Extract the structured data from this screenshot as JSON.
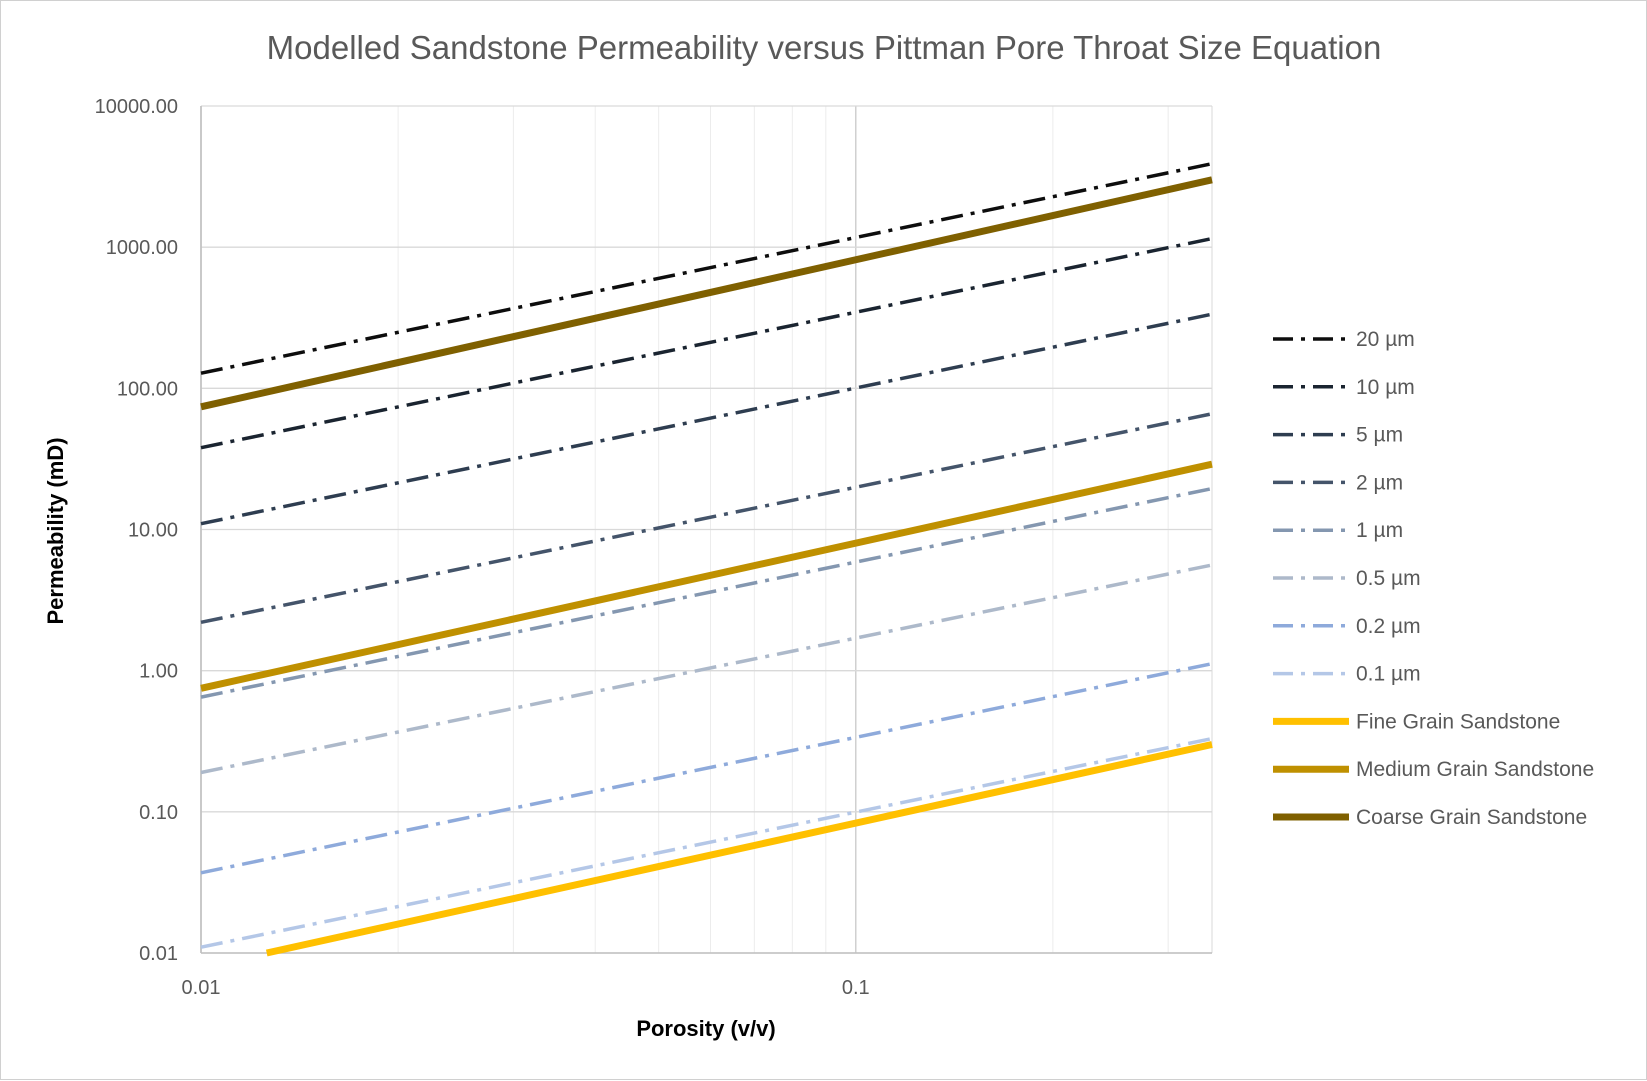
{
  "chart_data": {
    "type": "line",
    "title": "Modelled Sandstone Permeability versus Pittman Pore Throat Size Equation",
    "xlabel": "Porosity (v/v)",
    "ylabel": "Permeability (mD)",
    "xscale": "log",
    "yscale": "log",
    "xlim": [
      0.01,
      0.35
    ],
    "ylim": [
      0.01,
      10000
    ],
    "xticks": [
      {
        "value": 0.01,
        "label": "0.01"
      },
      {
        "value": 0.1,
        "label": "0.1"
      }
    ],
    "yticks": [
      {
        "value": 10000,
        "label": "10000.00"
      },
      {
        "value": 1000,
        "label": "1000.00"
      },
      {
        "value": 100,
        "label": "100.00"
      },
      {
        "value": 10,
        "label": "10.00"
      },
      {
        "value": 1,
        "label": "1.00"
      },
      {
        "value": 0.1,
        "label": "0.10"
      },
      {
        "value": 0.01,
        "label": "0.01"
      }
    ],
    "grid": true,
    "legend_position": "right",
    "series": [
      {
        "name": "20 µm",
        "color": "#0d0d0d",
        "style": "dash-dot",
        "x": [
          0.01,
          0.35
        ],
        "y": [
          128,
          3900
        ]
      },
      {
        "name": "10 µm",
        "color": "#1a2430",
        "style": "dash-dot",
        "x": [
          0.01,
          0.35
        ],
        "y": [
          38,
          1150
        ]
      },
      {
        "name": "5 µm",
        "color": "#2e3d50",
        "style": "dash-dot",
        "x": [
          0.01,
          0.35
        ],
        "y": [
          11,
          335
        ]
      },
      {
        "name": "2 µm",
        "color": "#44546a",
        "style": "dash-dot",
        "x": [
          0.01,
          0.35
        ],
        "y": [
          2.2,
          66
        ]
      },
      {
        "name": "1 µm",
        "color": "#8497b0",
        "style": "dash-dot",
        "x": [
          0.01,
          0.35
        ],
        "y": [
          0.65,
          19.5
        ]
      },
      {
        "name": "0.5 µm",
        "color": "#adb9ca",
        "style": "dash-dot",
        "x": [
          0.01,
          0.35
        ],
        "y": [
          0.19,
          5.6
        ]
      },
      {
        "name": "0.2 µm",
        "color": "#8eaadb",
        "style": "dash-dot",
        "x": [
          0.01,
          0.35
        ],
        "y": [
          0.037,
          1.12
        ]
      },
      {
        "name": "0.1 µm",
        "color": "#b4c7e7",
        "style": "dash-dot",
        "x": [
          0.01,
          0.35
        ],
        "y": [
          0.011,
          0.33
        ]
      },
      {
        "name": "Fine Grain Sandstone",
        "color": "#ffc000",
        "style": "solid",
        "x": [
          0.0126,
          0.35
        ],
        "y": [
          0.01,
          0.3
        ]
      },
      {
        "name": "Medium Grain Sandstone",
        "color": "#bf9000",
        "style": "solid",
        "x": [
          0.01,
          0.35
        ],
        "y": [
          0.75,
          29
        ]
      },
      {
        "name": "Coarse Grain Sandstone",
        "color": "#7f6000",
        "style": "solid",
        "x": [
          0.01,
          0.35
        ],
        "y": [
          74,
          3000
        ]
      }
    ]
  }
}
